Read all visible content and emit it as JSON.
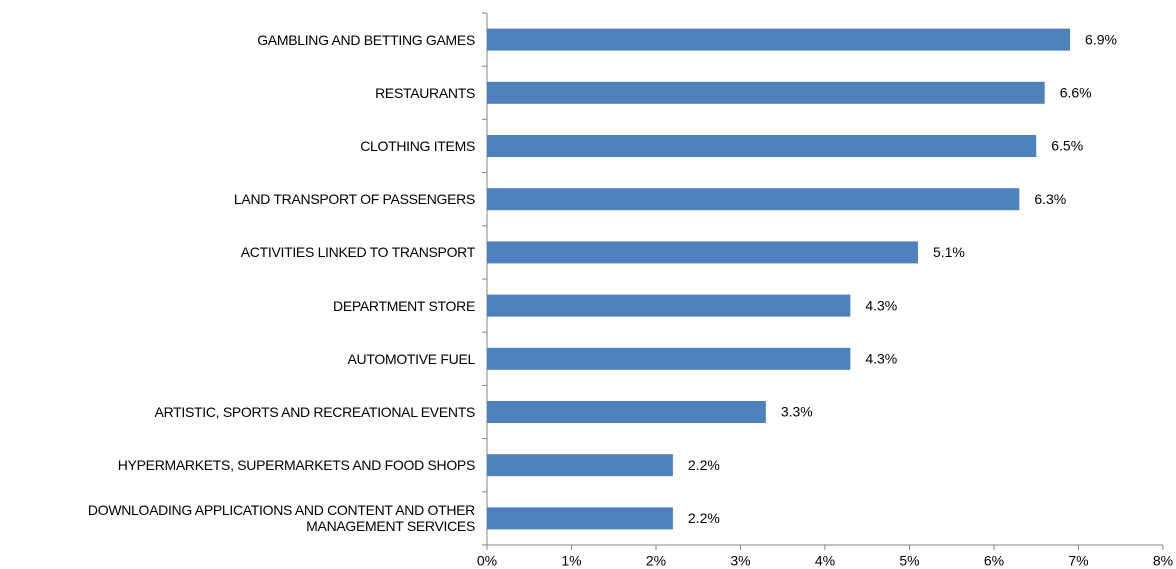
{
  "chart_data": {
    "type": "bar",
    "orientation": "horizontal",
    "categories": [
      "GAMBLING AND BETTING GAMES",
      "RESTAURANTS",
      "CLOTHING ITEMS",
      "LAND TRANSPORT OF PASSENGERS",
      "ACTIVITIES LINKED TO TRANSPORT",
      "DEPARTMENT STORE",
      "AUTOMOTIVE FUEL",
      "ARTISTIC, SPORTS AND RECREATIONAL EVENTS",
      "HYPERMARKETS, SUPERMARKETS AND FOOD SHOPS",
      "DOWNLOADING APPLICATIONS AND CONTENT AND OTHER MANAGEMENT SERVICES"
    ],
    "values": [
      6.9,
      6.6,
      6.5,
      6.3,
      5.1,
      4.3,
      4.3,
      3.3,
      2.2,
      2.2
    ],
    "value_labels": [
      "6.9%",
      "6.6%",
      "6.5%",
      "6.3%",
      "5.1%",
      "4.3%",
      "4.3%",
      "3.3%",
      "2.2%",
      "2.2%"
    ],
    "color": "#4f81bd",
    "xlim": [
      0,
      8
    ],
    "xticks": [
      {
        "value": 0,
        "label": "0%"
      },
      {
        "value": 1,
        "label": "1%"
      },
      {
        "value": 2,
        "label": "2%"
      },
      {
        "value": 3,
        "label": "3%"
      },
      {
        "value": 4,
        "label": "4%"
      },
      {
        "value": 5,
        "label": "5%"
      },
      {
        "value": 6,
        "label": "6%"
      },
      {
        "value": 7,
        "label": "7%"
      },
      {
        "value": 8,
        "label": "8%"
      }
    ],
    "grid": false
  }
}
